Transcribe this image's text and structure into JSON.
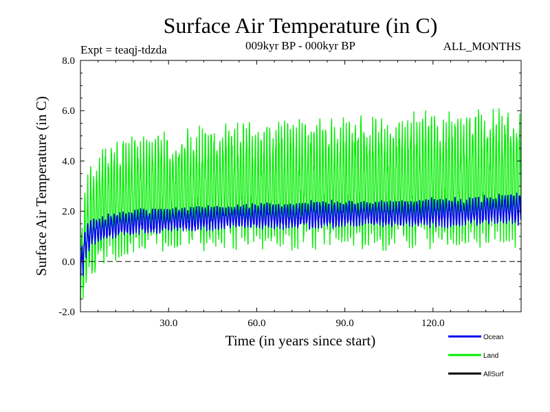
{
  "chart_data": {
    "type": "line",
    "title": "Surface Air Temperature (in C)",
    "subtitle_left": "Expt = teaqj-tdzda",
    "subtitle_center": "009kyr BP - 000kyr BP",
    "subtitle_right": "ALL_MONTHS",
    "xlabel": "Time (in years since start)",
    "ylabel": "Surface Air Temperature (in C)",
    "xlim": [
      0,
      150
    ],
    "ylim": [
      -2.0,
      8.0
    ],
    "x_ticks": [
      30,
      60,
      90,
      120
    ],
    "x_tick_labels": [
      "30.0",
      "60.0",
      "90.0",
      "120.0"
    ],
    "y_ticks": [
      -2,
      0,
      2,
      4,
      6,
      8
    ],
    "y_tick_labels": [
      "-2.0",
      "0.0",
      "2.0",
      "4.0",
      "6.0",
      "8.0"
    ],
    "zero_line": 0.0,
    "series": [
      {
        "name": "Land",
        "color": "#00ee00",
        "description": "annual-cycle envelope, per-year min/max",
        "x": [
          0,
          1,
          2,
          3,
          5,
          7,
          10,
          15,
          20,
          25,
          30,
          40,
          50,
          60,
          70,
          80,
          90,
          100,
          110,
          120,
          130,
          140,
          148,
          150
        ],
        "min": [
          -1.8,
          -1.2,
          -0.6,
          -0.3,
          0.0,
          0.2,
          0.5,
          0.6,
          0.8,
          0.9,
          0.9,
          1.0,
          1.0,
          1.1,
          1.1,
          1.1,
          1.1,
          1.1,
          1.1,
          1.1,
          1.2,
          1.2,
          1.2,
          1.2
        ],
        "max": [
          0.5,
          1.8,
          2.8,
          3.3,
          3.6,
          4.0,
          4.3,
          4.4,
          4.5,
          4.6,
          4.6,
          4.8,
          4.9,
          5.0,
          5.1,
          5.1,
          5.1,
          5.2,
          5.2,
          5.3,
          5.3,
          5.4,
          5.5,
          5.5
        ]
      },
      {
        "name": "Ocean",
        "color": "#0000ee",
        "description": "annual-cycle envelope, per-year min/max",
        "x": [
          0,
          1,
          2,
          3,
          5,
          7,
          10,
          15,
          20,
          25,
          30,
          40,
          50,
          60,
          70,
          80,
          90,
          100,
          110,
          120,
          130,
          140,
          148,
          150
        ],
        "min": [
          -0.9,
          -0.2,
          0.3,
          0.6,
          0.8,
          0.9,
          1.0,
          1.1,
          1.2,
          1.2,
          1.3,
          1.3,
          1.4,
          1.4,
          1.4,
          1.4,
          1.5,
          1.5,
          1.5,
          1.5,
          1.5,
          1.6,
          1.6,
          1.6
        ],
        "max": [
          0.2,
          0.9,
          1.3,
          1.5,
          1.6,
          1.7,
          1.8,
          1.9,
          2.0,
          2.0,
          2.0,
          2.1,
          2.1,
          2.2,
          2.2,
          2.3,
          2.3,
          2.3,
          2.3,
          2.4,
          2.4,
          2.5,
          2.6,
          2.7
        ]
      },
      {
        "name": "AllSurf",
        "color": "#000000",
        "x": [],
        "values": []
      }
    ],
    "legend": [
      {
        "name": "Ocean",
        "color": "#0000ee"
      },
      {
        "name": "Land",
        "color": "#00ee00"
      },
      {
        "name": "AllSurf",
        "color": "#000000"
      }
    ],
    "legend_position": "bottom-right",
    "grid": false
  }
}
